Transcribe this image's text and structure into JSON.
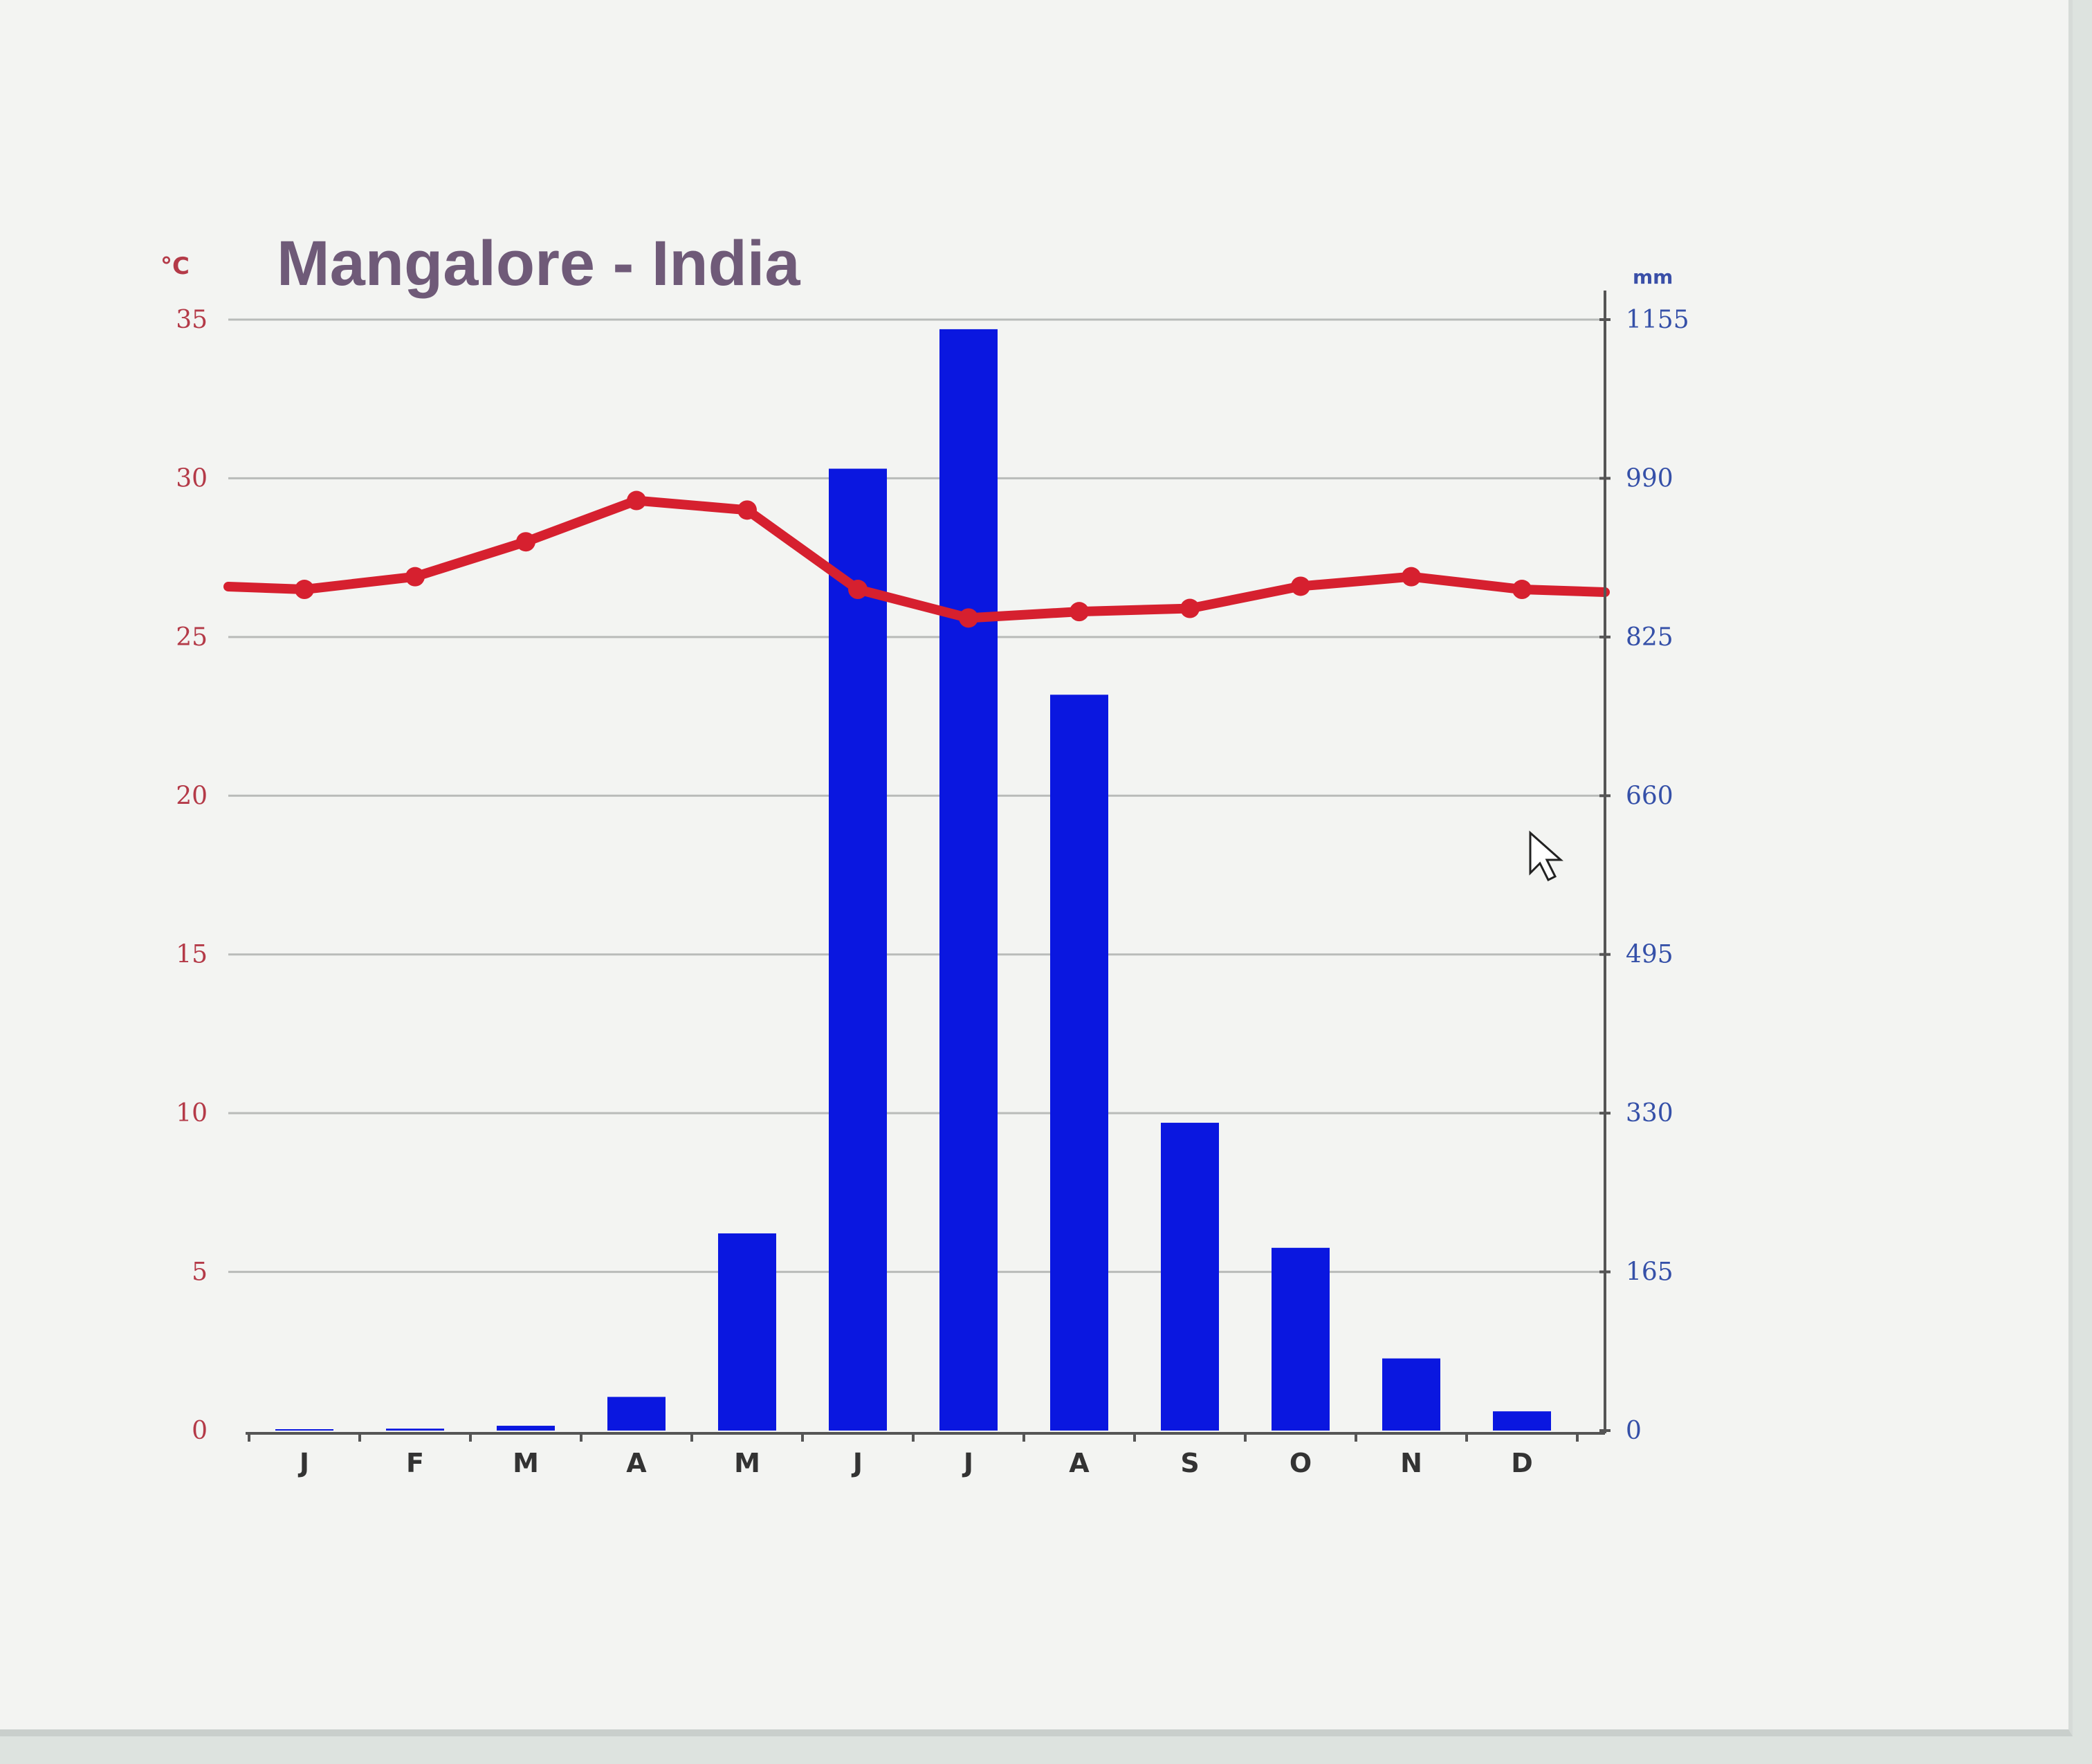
{
  "chart_data": {
    "type": "bar",
    "title": "Mangalore - India",
    "categories": [
      "J",
      "F",
      "M",
      "A",
      "M",
      "J",
      "J",
      "A",
      "S",
      "O",
      "N",
      "D"
    ],
    "y_left": {
      "unit": "°C",
      "ylim": [
        0,
        35
      ],
      "ticks": [
        "0",
        "5",
        "10",
        "15",
        "20",
        "25",
        "30",
        "35"
      ]
    },
    "y_right": {
      "unit": "mm",
      "ylim": [
        0,
        1155
      ],
      "ticks": [
        "0",
        "165",
        "330",
        "495",
        "660",
        "825",
        "990",
        "1155"
      ]
    },
    "series": [
      {
        "type": "bar",
        "axis": "right",
        "color": "#0a17e0",
        "values": [
          1,
          2,
          5,
          35,
          205,
          1000,
          1145,
          765,
          320,
          190,
          75,
          20
        ]
      },
      {
        "type": "line",
        "axis": "left",
        "color": "#d6202f",
        "values": [
          26.5,
          26.9,
          28.0,
          29.3,
          29.0,
          26.5,
          25.6,
          25.8,
          25.9,
          26.6,
          26.9,
          26.5
        ]
      }
    ],
    "grid": true
  }
}
